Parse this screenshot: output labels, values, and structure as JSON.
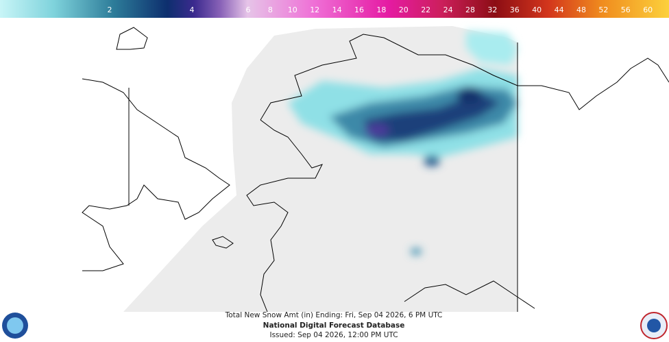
{
  "legend": {
    "ticks": [
      2,
      4,
      6,
      8,
      10,
      12,
      14,
      16,
      18,
      20,
      22,
      24,
      28,
      32,
      36,
      40,
      44,
      48,
      52,
      56,
      60
    ]
  },
  "caption": {
    "line1": "Total New Snow Amt (in) Ending: Fri, Sep 04 2026, 6 PM UTC",
    "title": "National Digital Forecast Database",
    "issued": "Issued: Sep 04 2026, 12:00 PM UTC"
  }
}
